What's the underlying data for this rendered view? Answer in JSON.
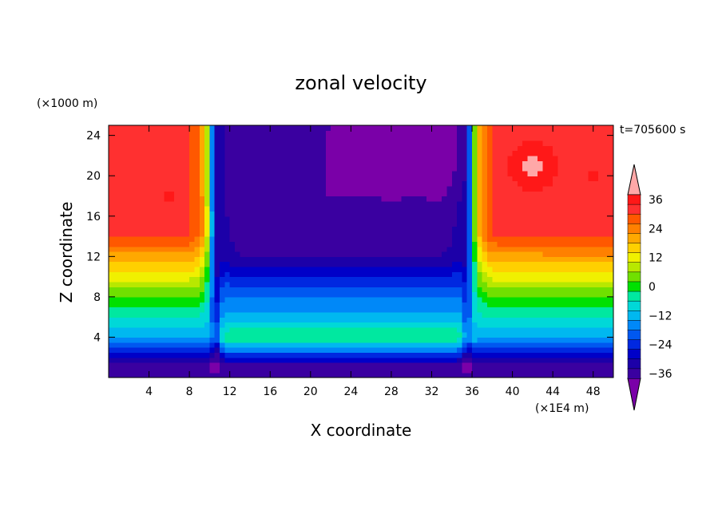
{
  "chart_data": {
    "type": "heatmap",
    "title": "zonal velocity",
    "time_label": "t=705600 s",
    "xlabel": "X coordinate",
    "ylabel": "Z coordinate",
    "x_unit": "(×1E4 m)",
    "y_unit": "(×1000 m)",
    "xlim": [
      0,
      50
    ],
    "ylim": [
      0,
      25
    ],
    "x_ticks": [
      4,
      8,
      12,
      16,
      20,
      24,
      28,
      32,
      36,
      40,
      44,
      48
    ],
    "y_ticks": [
      4,
      8,
      12,
      16,
      20,
      24
    ],
    "colorbar": {
      "levels": [
        -40,
        -36,
        -32,
        -28,
        -24,
        -20,
        -16,
        -12,
        -8,
        -4,
        0,
        4,
        8,
        12,
        16,
        20,
        24,
        28,
        32,
        36,
        40
      ],
      "tick_labels": [
        "36",
        "24",
        "12",
        "0",
        "−12",
        "−24",
        "−36"
      ],
      "tick_values": [
        36,
        24,
        12,
        0,
        -12,
        -24,
        -36
      ],
      "colors": [
        "#7a00a8",
        "#3a00a0",
        "#1c00a8",
        "#0000c8",
        "#0028e0",
        "#0058f0",
        "#0088f8",
        "#00b8f0",
        "#00d8d8",
        "#00e8a0",
        "#00e000",
        "#70e000",
        "#b8e800",
        "#f0f000",
        "#ffd000",
        "#ffa800",
        "#ff8000",
        "#ff5800",
        "#ff3030",
        "#ff1818",
        "#ffa8a8"
      ]
    }
  }
}
